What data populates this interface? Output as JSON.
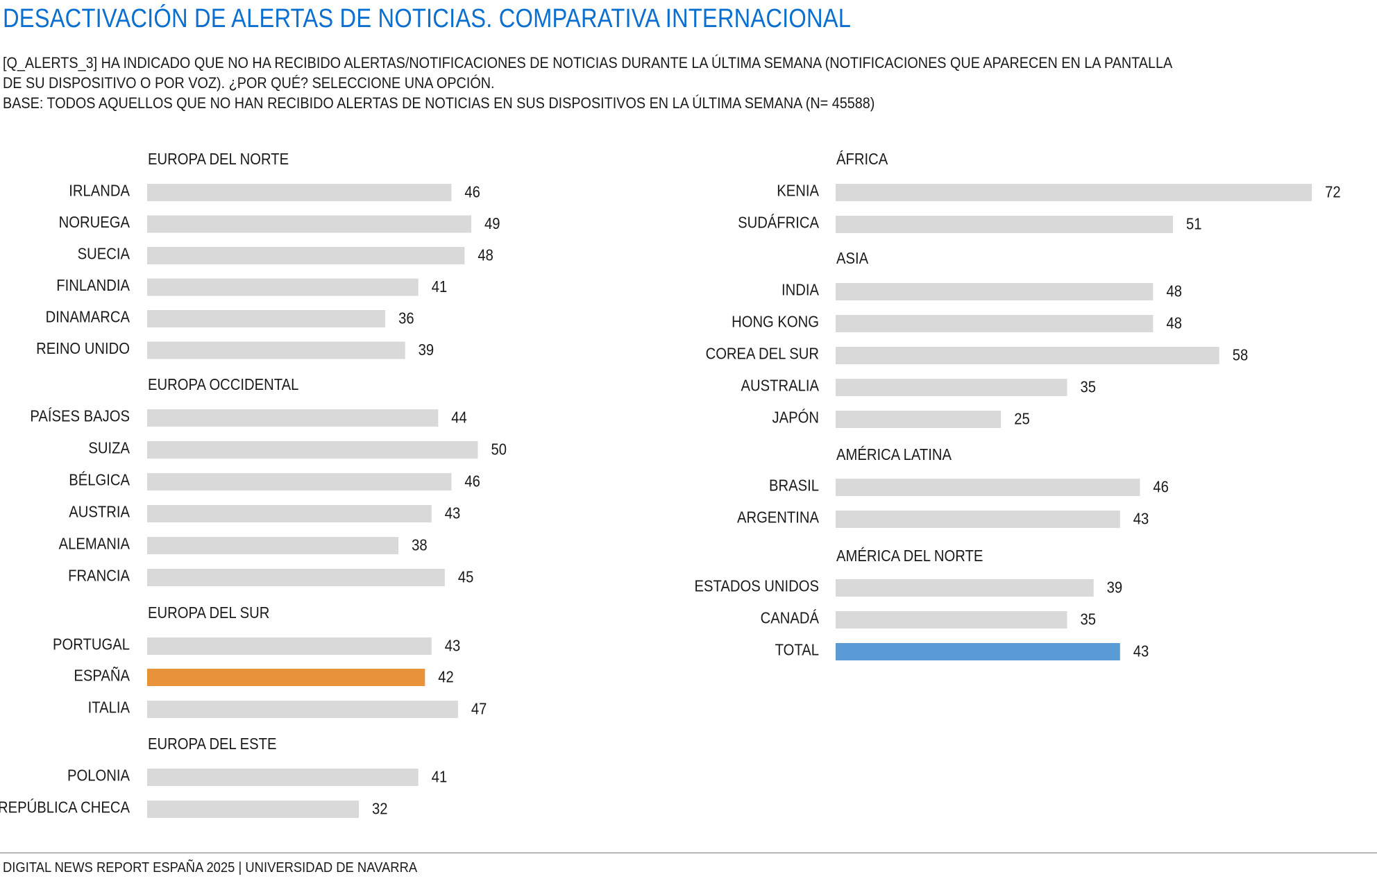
{
  "title": "DESACTIVACIÓN DE ALERTAS DE NOTICIAS. COMPARATIVA INTERNACIONAL",
  "subtitle_lines": [
    "[Q_ALERTS_3] HA INDICADO QUE NO HA RECIBIDO ALERTAS/NOTIFICACIONES DE NOTICIAS DURANTE LA ÚLTIMA SEMANA (NOTIFICACIONES QUE APARECEN EN LA PANTALLA",
    "DE SU DISPOSITIVO O POR VOZ). ¿POR QUÉ? SELECCIONE UNA OPCIÓN.",
    "BASE: TODOS AQUELLOS QUE NO HAN RECIBIDO ALERTAS DE NOTICIAS EN SUS DISPOSITIVOS EN LA ÚLTIMA SEMANA (N= 45588)"
  ],
  "footer": "DIGITAL NEWS REPORT ESPAÑA 2025 | UNIVERSIDAD DE NAVARRA",
  "colors": {
    "title": "#0b6fd0",
    "bar_default": "#d9d9d9",
    "bar_spain": "#e8923a",
    "bar_total": "#5b9bd5"
  },
  "chart_data": {
    "type": "bar",
    "orientation": "horizontal",
    "panels": [
      {
        "groups": [
          {
            "name": "EUROPA DEL NORTE",
            "items": [
              {
                "label": "IRLANDA",
                "value": 46
              },
              {
                "label": "NORUEGA",
                "value": 49
              },
              {
                "label": "SUECIA",
                "value": 48
              },
              {
                "label": "FINLANDIA",
                "value": 41
              },
              {
                "label": "DINAMARCA",
                "value": 36
              },
              {
                "label": "REINO UNIDO",
                "value": 39
              }
            ]
          },
          {
            "name": "EUROPA OCCIDENTAL",
            "items": [
              {
                "label": "PAÍSES BAJOS",
                "value": 44
              },
              {
                "label": "SUIZA",
                "value": 50
              },
              {
                "label": "BÉLGICA",
                "value": 46
              },
              {
                "label": "AUSTRIA",
                "value": 43
              },
              {
                "label": "ALEMANIA",
                "value": 38
              },
              {
                "label": "FRANCIA",
                "value": 45
              }
            ]
          },
          {
            "name": "EUROPA DEL SUR",
            "items": [
              {
                "label": "PORTUGAL",
                "value": 43
              },
              {
                "label": "ESPAÑA",
                "value": 42,
                "highlight": "spain"
              },
              {
                "label": "ITALIA",
                "value": 47
              }
            ]
          },
          {
            "name": "EUROPA DEL ESTE",
            "items": [
              {
                "label": "POLONIA",
                "value": 41
              },
              {
                "label": "REPÚBLICA CHECA",
                "value": 32
              }
            ]
          }
        ]
      },
      {
        "groups": [
          {
            "name": "ÁFRICA",
            "items": [
              {
                "label": "KENIA",
                "value": 72
              },
              {
                "label": "SUDÁFRICA",
                "value": 51
              }
            ]
          },
          {
            "name": "ASIA",
            "items": [
              {
                "label": "INDIA",
                "value": 48
              },
              {
                "label": "HONG KONG",
                "value": 48
              },
              {
                "label": "COREA DEL SUR",
                "value": 58
              },
              {
                "label": "AUSTRALIA",
                "value": 35
              },
              {
                "label": "JAPÓN",
                "value": 25
              }
            ]
          },
          {
            "name": "AMÉRICA LATINA",
            "items": [
              {
                "label": "BRASIL",
                "value": 46
              },
              {
                "label": "ARGENTINA",
                "value": 43
              }
            ]
          },
          {
            "name": "AMÉRICA DEL NORTE",
            "items": [
              {
                "label": "ESTADOS UNIDOS",
                "value": 39
              },
              {
                "label": "CANADÁ",
                "value": 35
              },
              {
                "label": "TOTAL",
                "value": 43,
                "highlight": "total"
              }
            ]
          }
        ]
      }
    ]
  }
}
